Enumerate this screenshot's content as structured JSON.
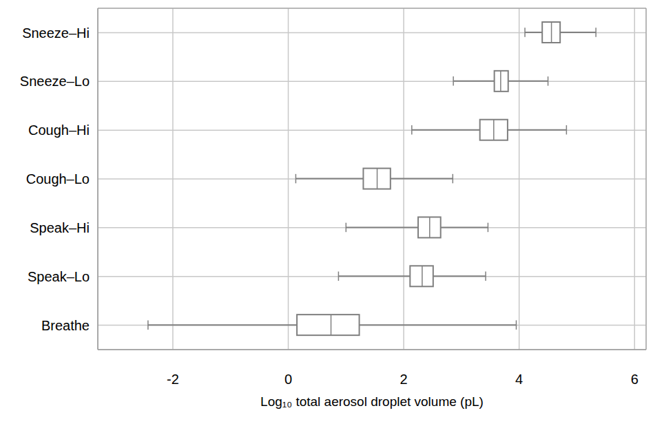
{
  "chart_data": {
    "type": "box",
    "orientation": "horizontal",
    "xlabel": "Log₁₀ total aerosol droplet volume (pL)",
    "categories": [
      "Sneeze–Hi",
      "Sneeze–Lo",
      "Cough–Hi",
      "Cough–Lo",
      "Speak–Hi",
      "Speak–Lo",
      "Breathe"
    ],
    "whisker_low": [
      4.1,
      2.86,
      2.14,
      0.13,
      1.0,
      0.87,
      -2.43
    ],
    "q1": [
      4.4,
      3.57,
      3.32,
      1.3,
      2.25,
      2.11,
      0.15
    ],
    "median": [
      4.56,
      3.68,
      3.56,
      1.54,
      2.45,
      2.32,
      0.74
    ],
    "q3": [
      4.71,
      3.81,
      3.8,
      1.77,
      2.64,
      2.51,
      1.23
    ],
    "whisker_high": [
      5.33,
      4.5,
      4.82,
      2.85,
      3.46,
      3.42,
      3.95
    ],
    "color": "#7f7f7f",
    "xlim": [
      -3.3,
      6.2
    ],
    "xticks": [
      -2,
      0,
      2,
      4,
      6
    ],
    "grid": true
  }
}
